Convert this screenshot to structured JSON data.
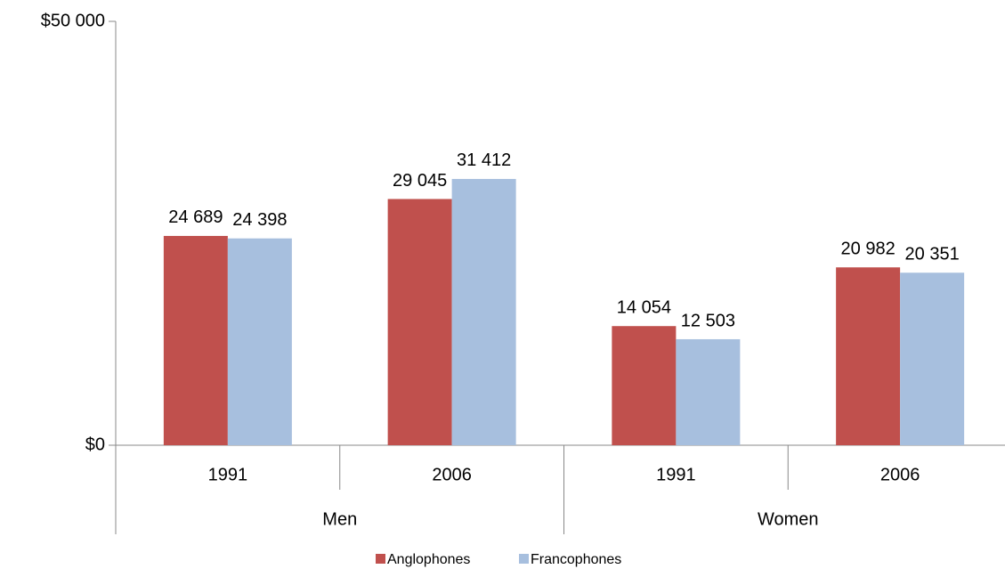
{
  "chart_data": {
    "type": "bar",
    "groups": [
      "Men",
      "Women"
    ],
    "categories": [
      "1991",
      "2006",
      "1991",
      "2006"
    ],
    "series": [
      {
        "name": "Anglophones",
        "color": "#c0504d",
        "values": [
          24689,
          29045,
          14054,
          20982
        ],
        "value_labels": [
          "24 689",
          "29 045",
          "14 054",
          "20 982"
        ]
      },
      {
        "name": "Francophones",
        "color": "#a7bfde",
        "values": [
          24398,
          31412,
          12503,
          20351
        ],
        "value_labels": [
          "24 398",
          "31 412",
          "12 503",
          "20 351"
        ]
      }
    ],
    "ylim": [
      0,
      50000
    ],
    "yticks": [
      {
        "value": 0,
        "label": "$0"
      },
      {
        "value": 50000,
        "label": "$50 000"
      }
    ],
    "legend": "bottom"
  }
}
